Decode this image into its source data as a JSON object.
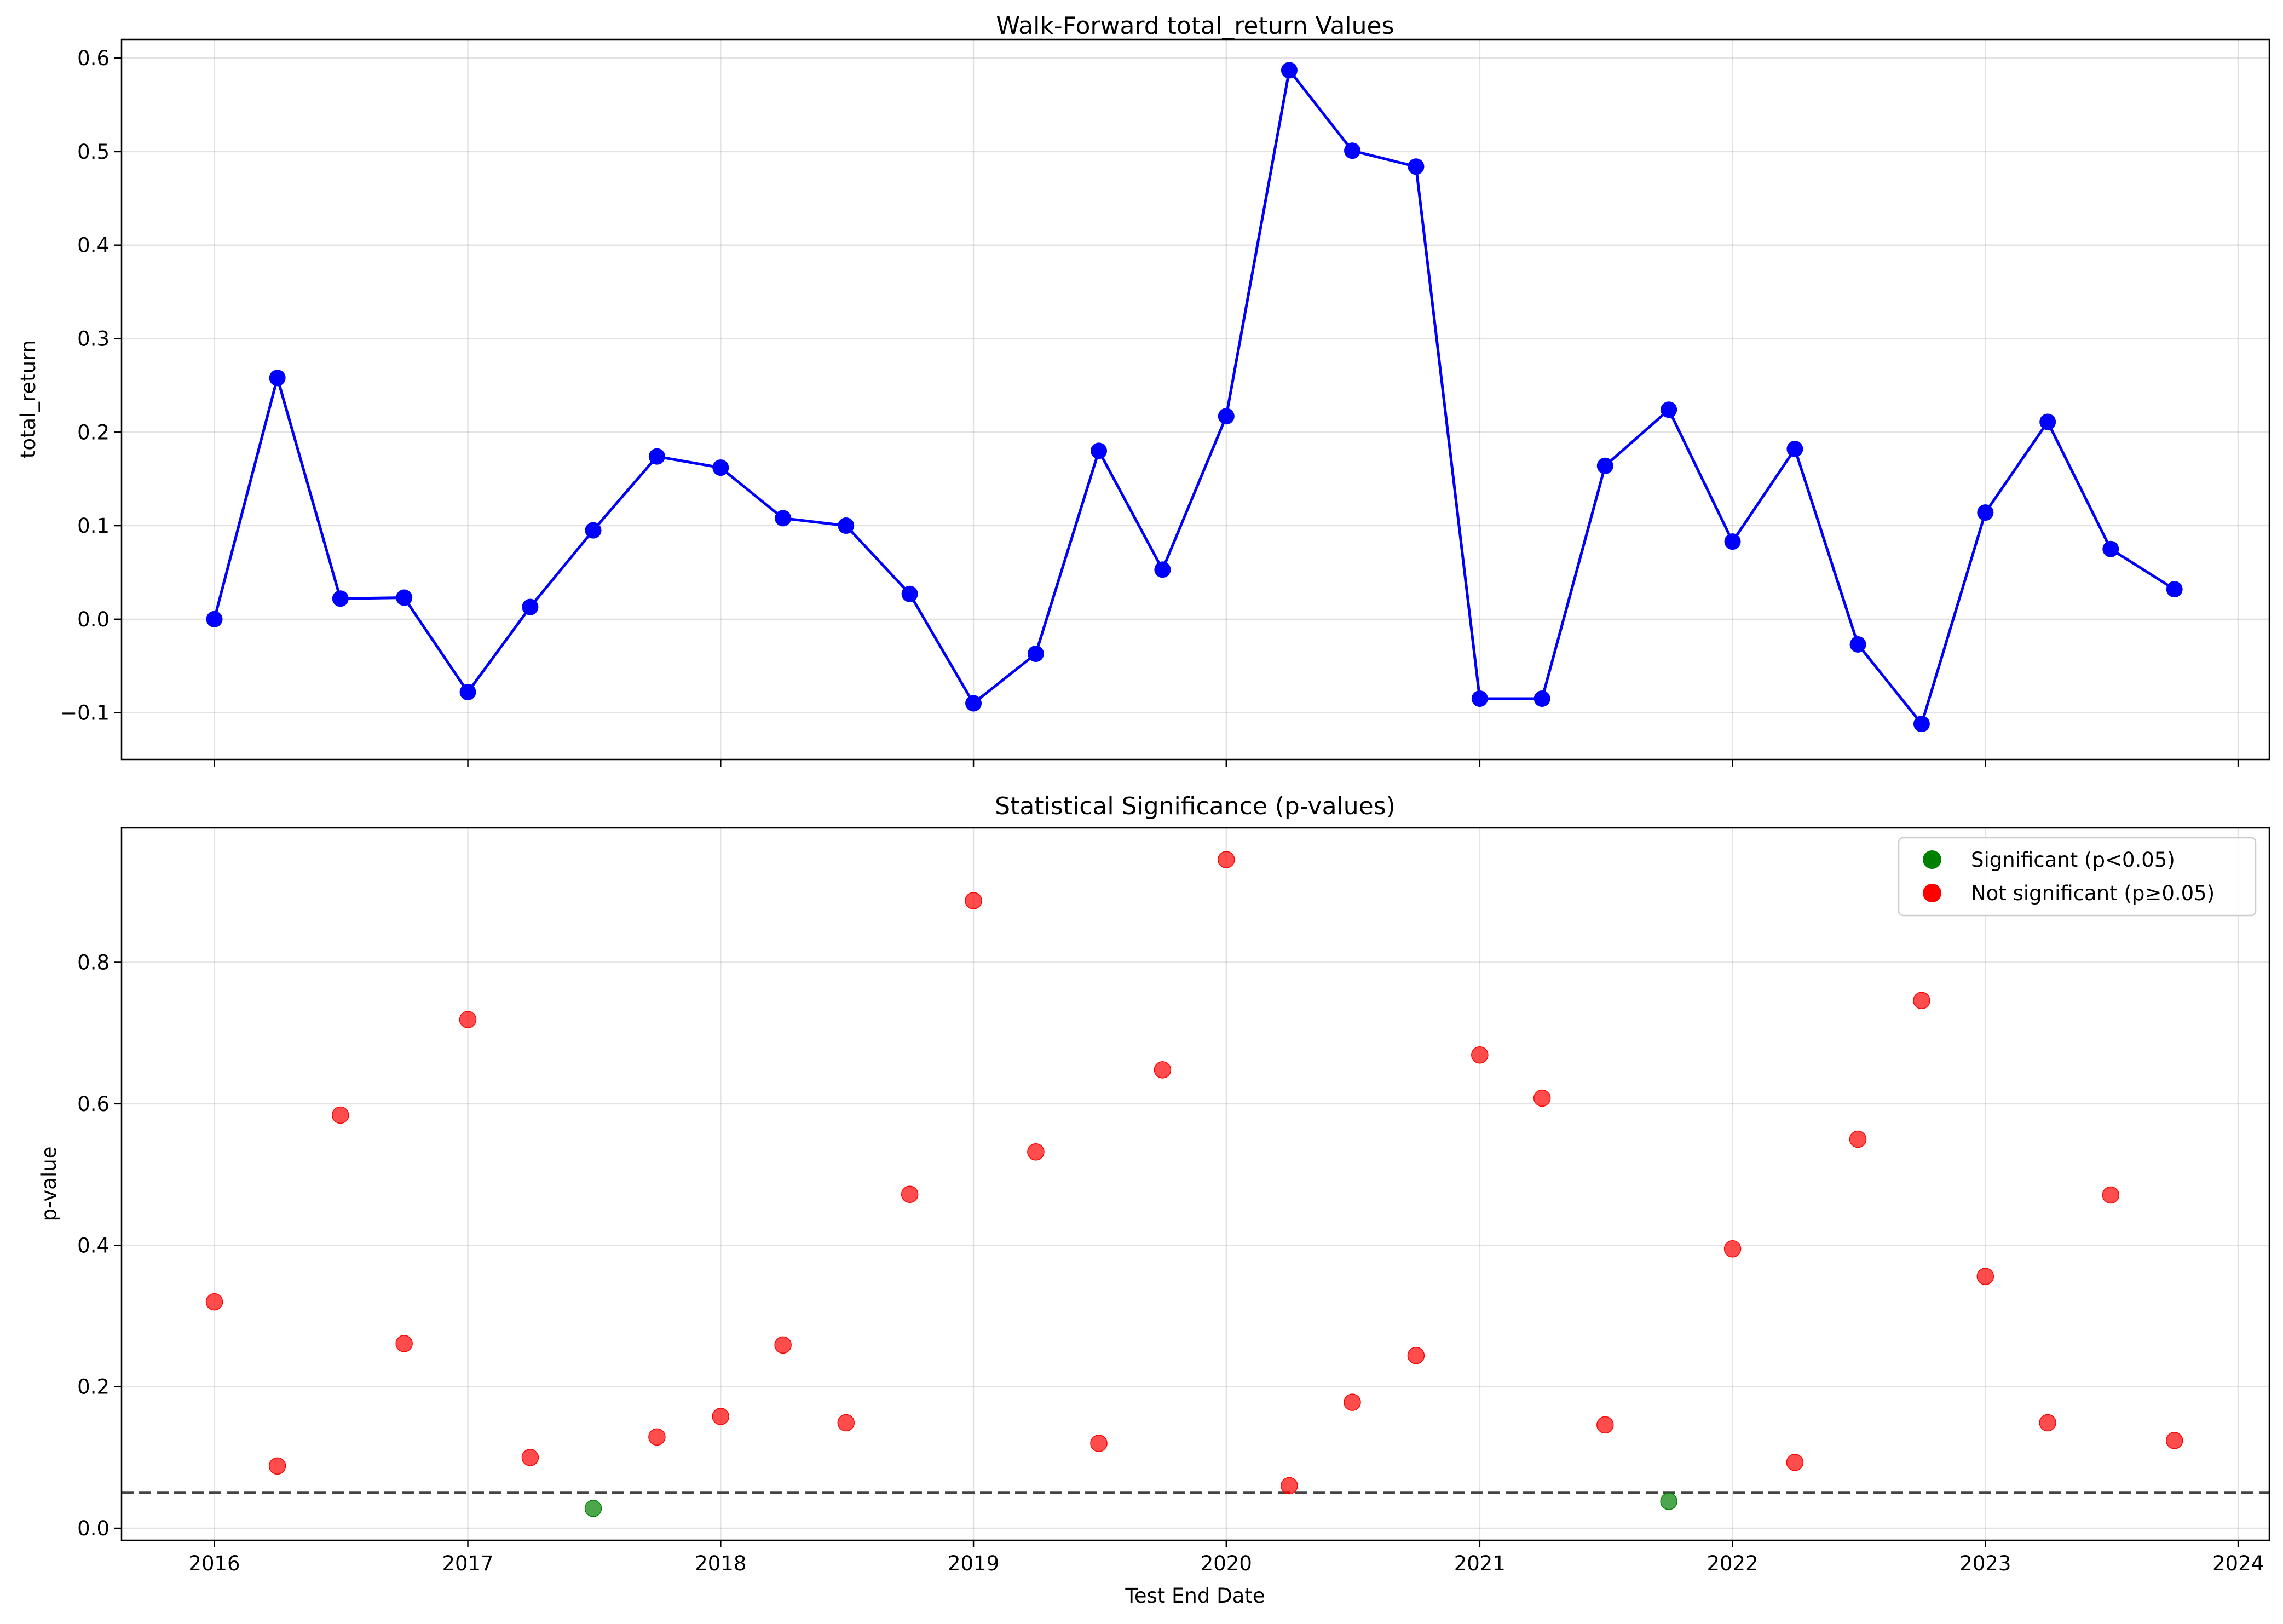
{
  "chart_data": [
    {
      "type": "line",
      "title": "Walk-Forward total_return Values",
      "xlabel": "",
      "ylabel": "total_return",
      "color": "#0000ff",
      "grid": true,
      "x_domain": [
        "2015-08-20",
        "2024-02-15"
      ],
      "ylim": [
        -0.15,
        0.62
      ],
      "x_ticks": [
        "2016",
        "2017",
        "2018",
        "2019",
        "2020",
        "2021",
        "2022",
        "2023",
        "2024"
      ],
      "y_ticks": [
        -0.1,
        0.0,
        0.1,
        0.2,
        0.3,
        0.4,
        0.5,
        0.6
      ],
      "y_tick_labels": [
        "−0.1",
        "0.0",
        "0.1",
        "0.2",
        "0.3",
        "0.4",
        "0.5",
        "0.6"
      ],
      "x": [
        "2016-01-01",
        "2016-04-01",
        "2016-07-01",
        "2016-10-01",
        "2017-01-01",
        "2017-04-01",
        "2017-07-01",
        "2017-10-01",
        "2018-01-01",
        "2018-04-01",
        "2018-07-01",
        "2018-10-01",
        "2019-01-01",
        "2019-04-01",
        "2019-07-01",
        "2019-10-01",
        "2020-01-01",
        "2020-04-01",
        "2020-07-01",
        "2020-10-01",
        "2021-01-01",
        "2021-04-01",
        "2021-07-01",
        "2021-10-01",
        "2022-01-01",
        "2022-04-01",
        "2022-07-01",
        "2022-10-01",
        "2023-01-01",
        "2023-04-01",
        "2023-07-01",
        "2023-10-01"
      ],
      "values": [
        0.0,
        0.258,
        0.022,
        0.023,
        -0.078,
        0.013,
        0.095,
        0.174,
        0.162,
        0.108,
        0.1,
        0.027,
        -0.09,
        -0.037,
        0.18,
        0.053,
        0.217,
        0.587,
        0.501,
        0.484,
        -0.085,
        -0.085,
        0.164,
        0.224,
        0.083,
        0.182,
        -0.027,
        -0.112,
        0.114,
        0.211,
        0.075,
        0.032
      ]
    },
    {
      "type": "scatter",
      "title": "Statistical Significance (p-values)",
      "xlabel": "Test End Date",
      "ylabel": "p-value",
      "grid": true,
      "x_domain": [
        "2015-08-20",
        "2024-02-15"
      ],
      "ylim": [
        -0.017,
        0.99
      ],
      "x_ticks": [
        "2016",
        "2017",
        "2018",
        "2019",
        "2020",
        "2021",
        "2022",
        "2023",
        "2024"
      ],
      "y_ticks": [
        0.0,
        0.2,
        0.4,
        0.6,
        0.8
      ],
      "y_tick_labels": [
        "0.0",
        "0.2",
        "0.4",
        "0.6",
        "0.8"
      ],
      "threshold": 0.05,
      "legend_position": "upper right",
      "legend": [
        {
          "label": "Significant (p<0.05)",
          "color": "#008000"
        },
        {
          "label": "Not significant (p≥0.05)",
          "color": "#ff0000"
        }
      ],
      "x": [
        "2016-01-01",
        "2016-04-01",
        "2016-07-01",
        "2016-10-01",
        "2017-01-01",
        "2017-04-01",
        "2017-07-01",
        "2017-10-01",
        "2018-01-01",
        "2018-04-01",
        "2018-07-01",
        "2018-10-01",
        "2019-01-01",
        "2019-04-01",
        "2019-07-01",
        "2019-10-01",
        "2020-01-01",
        "2020-04-01",
        "2020-07-01",
        "2020-10-01",
        "2021-01-01",
        "2021-04-01",
        "2021-07-01",
        "2021-10-01",
        "2022-01-01",
        "2022-04-01",
        "2022-07-01",
        "2022-10-01",
        "2023-01-01",
        "2023-04-01",
        "2023-07-01",
        "2023-10-01"
      ],
      "values": [
        0.32,
        0.088,
        0.584,
        0.261,
        0.719,
        0.1,
        0.028,
        0.129,
        0.158,
        0.259,
        0.149,
        0.472,
        0.887,
        0.532,
        0.12,
        0.648,
        0.945,
        0.06,
        0.178,
        0.244,
        0.669,
        0.608,
        0.146,
        0.038,
        0.395,
        0.093,
        0.55,
        0.746,
        0.356,
        0.149,
        0.471,
        0.124
      ]
    }
  ]
}
